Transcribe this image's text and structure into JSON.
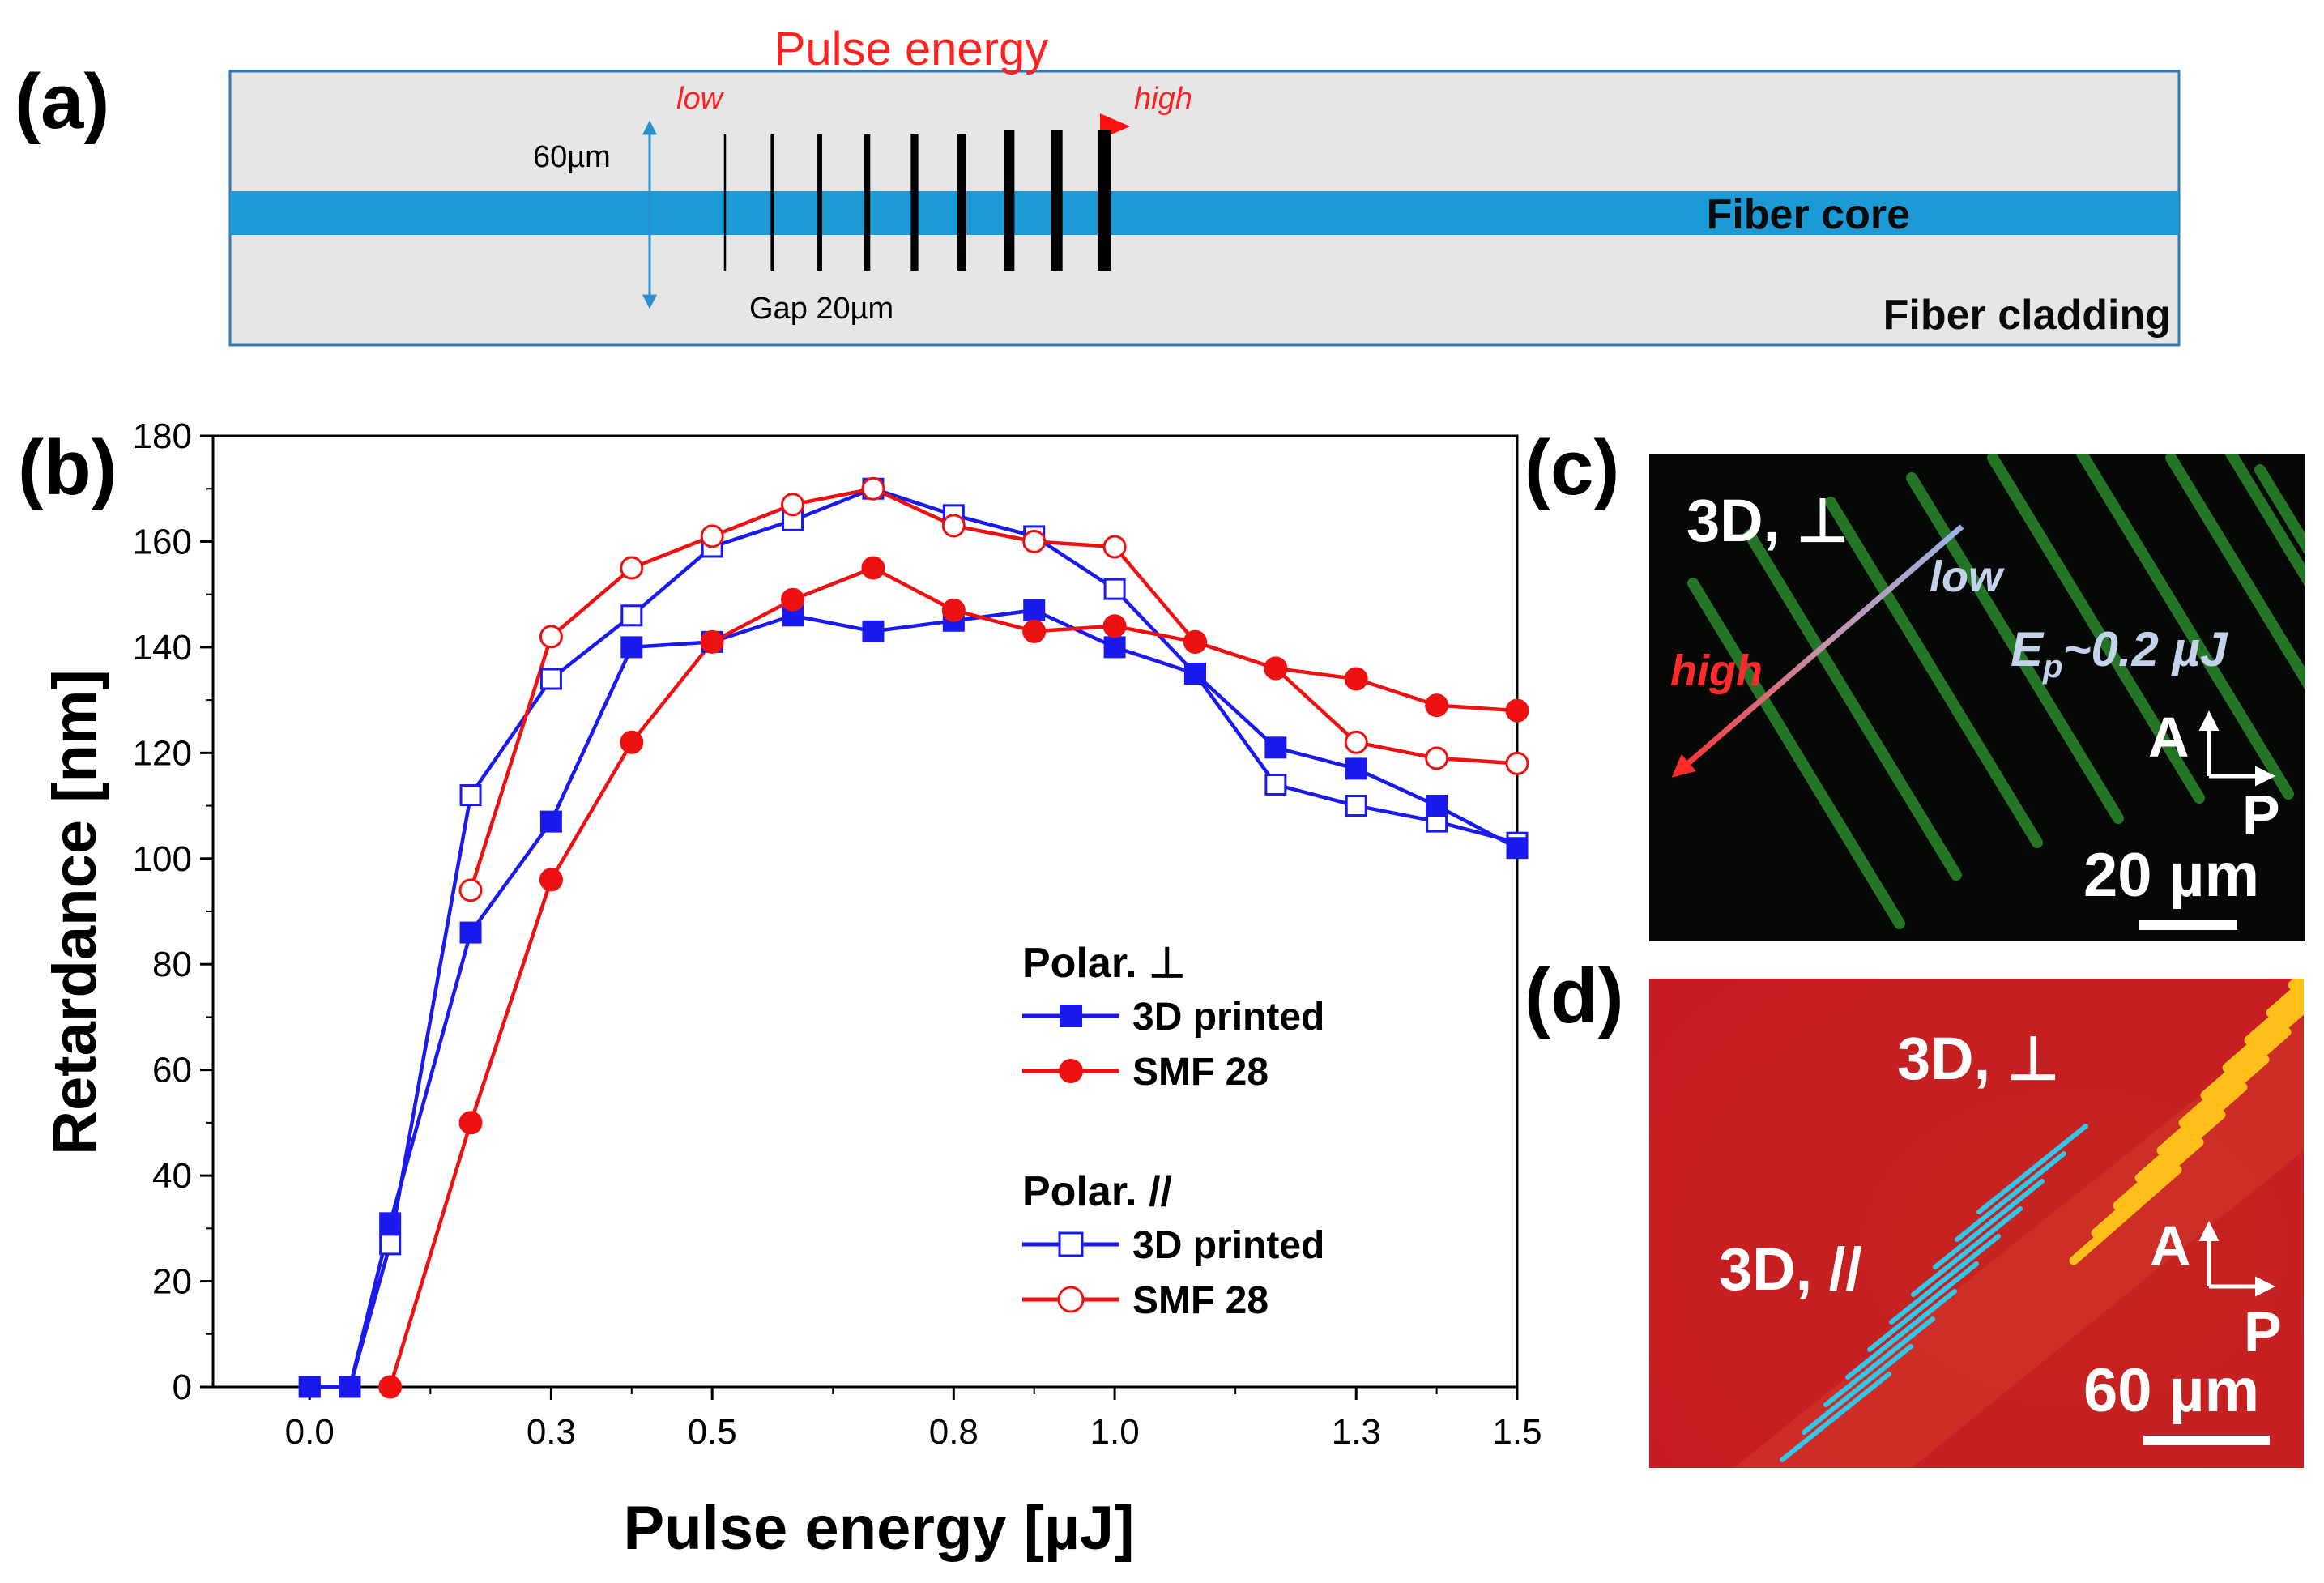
{
  "colors": {
    "core": "#1b9ad6",
    "cladding": "#e6e6e6",
    "border": "#2e7ab8",
    "accent": "#ff2020",
    "blue_series": "#1a1aee",
    "red_series": "#ee1111",
    "panel_c_bg": "#050805",
    "panel_c_line": "#2f9a32",
    "panel_d_bg": "#c81f1f",
    "panel_d_yellow": "#ffbf1a",
    "panel_d_cyan": "#2fc7ea",
    "label_light_blue": "#c4d3ec"
  },
  "panel_a": {
    "label": "(a)",
    "pulse_title": "Pulse energy",
    "low": "low",
    "high": "high",
    "height_label": "60µm",
    "gap_label": "Gap 20µm",
    "core_label": "Fiber core",
    "cladding_label": "Fiber cladding",
    "line_count": 9
  },
  "panel_b": {
    "label": "(b)"
  },
  "panel_c": {
    "label": "(c)",
    "mode": "3D, ⊥",
    "low": "low",
    "high": "high",
    "energy": "E",
    "energy_sub": "p",
    "energy_value": "~0.2 µJ",
    "axis_a": "A",
    "axis_p": "P",
    "scale": "20 µm"
  },
  "panel_d": {
    "label": "(d)",
    "mode_perp": "3D, ⊥",
    "mode_par": "3D, //",
    "axis_a": "A",
    "axis_p": "P",
    "scale": "60 µm"
  },
  "chart_data": {
    "type": "line",
    "xlabel": "Pulse energy [µJ]",
    "ylabel": "Retardance [nm]",
    "xlim": [
      -0.12,
      1.5
    ],
    "ylim": [
      0,
      180
    ],
    "xticks": [
      0.0,
      0.3,
      0.5,
      0.8,
      1.0,
      1.3,
      1.5
    ],
    "xtick_labels": [
      "0.0",
      "0.3",
      "0.5",
      "0.8",
      "1.0",
      "1.3",
      "1.5"
    ],
    "yticks": [
      0,
      20,
      40,
      60,
      80,
      100,
      120,
      140,
      160,
      180
    ],
    "ytick_labels": [
      "0",
      "20",
      "40",
      "60",
      "80",
      "100",
      "120",
      "140",
      "160",
      "180"
    ],
    "x": [
      0.0,
      0.05,
      0.1,
      0.15,
      0.2,
      0.25,
      0.3,
      0.35,
      0.4,
      0.45,
      0.5,
      0.55,
      0.6,
      0.65,
      0.7,
      0.75,
      0.8,
      0.85,
      0.9,
      0.95,
      1.0,
      1.05,
      1.1,
      1.15,
      1.2,
      1.25,
      1.3,
      1.35,
      1.4,
      1.45,
      1.5
    ],
    "legend": {
      "placement": "bottom-right",
      "group1_title": "Polar. ⊥",
      "group2_title": "Polar. //",
      "entry_3d": "3D printed",
      "entry_smf": "SMF 28"
    },
    "series": [
      {
        "group": "perp",
        "marker": "filled-square",
        "color": "#1a1aee",
        "x": [
          0.0,
          0.05,
          0.1,
          0.2,
          0.3,
          0.4,
          0.5,
          0.6,
          0.7,
          0.8,
          0.9,
          1.0,
          1.1,
          1.2,
          1.3,
          1.4,
          1.5
        ],
        "y": [
          0,
          0,
          31,
          86,
          107,
          140,
          141,
          146,
          143,
          145,
          147,
          140,
          135,
          121,
          117,
          110,
          102
        ]
      },
      {
        "group": "perp",
        "marker": "filled-circle",
        "color": "#ee1111",
        "x": [
          0.1,
          0.2,
          0.3,
          0.4,
          0.5,
          0.6,
          0.7,
          0.8,
          0.9,
          1.0,
          1.1,
          1.2,
          1.3,
          1.4,
          1.5
        ],
        "y": [
          0,
          50,
          96,
          122,
          141,
          149,
          155,
          147,
          143,
          144,
          141,
          136,
          134,
          129,
          128
        ]
      },
      {
        "group": "par",
        "marker": "open-square",
        "color": "#1a1aee",
        "x": [
          0.0,
          0.05,
          0.1,
          0.2,
          0.3,
          0.4,
          0.5,
          0.6,
          0.7,
          0.8,
          0.9,
          1.0,
          1.1,
          1.2,
          1.3,
          1.4,
          1.5
        ],
        "y": [
          0,
          0,
          27,
          112,
          134,
          146,
          159,
          164,
          170,
          165,
          161,
          151,
          135,
          114,
          110,
          107,
          103
        ]
      },
      {
        "group": "par",
        "marker": "open-circle",
        "color": "#ee1111",
        "x": [
          0.2,
          0.3,
          0.4,
          0.5,
          0.6,
          0.7,
          0.8,
          0.9,
          1.0,
          1.1,
          1.2,
          1.3,
          1.4,
          1.5
        ],
        "y": [
          94,
          142,
          155,
          161,
          167,
          170,
          163,
          160,
          159,
          141,
          136,
          122,
          119,
          118
        ]
      }
    ]
  }
}
